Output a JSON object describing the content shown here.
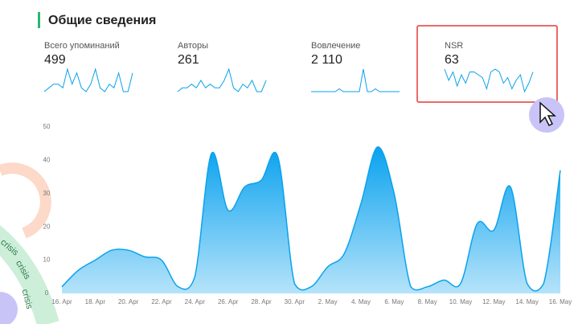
{
  "header": {
    "title": "Общие сведения"
  },
  "metrics": [
    {
      "label": "Всего упоминаний",
      "value": "499",
      "spark": [
        3,
        4,
        5,
        5,
        4,
        9,
        5,
        8,
        4,
        3,
        5,
        9,
        4,
        3,
        5,
        4,
        8,
        3,
        3,
        8
      ]
    },
    {
      "label": "Авторы",
      "value": "261",
      "spark": [
        3,
        4,
        4,
        5,
        4,
        6,
        4,
        5,
        4,
        4,
        6,
        9,
        4,
        3,
        5,
        4,
        6,
        3,
        3,
        6
      ]
    },
    {
      "label": "Вовлечение",
      "value": "2 110",
      "spark": [
        2,
        2,
        2,
        2,
        2,
        2,
        2,
        3,
        2,
        2,
        2,
        2,
        2,
        10,
        2,
        2,
        3,
        2,
        2,
        2,
        2,
        2,
        2
      ]
    },
    {
      "label": "NSR",
      "value": "63",
      "spark": [
        9,
        5,
        8,
        3,
        7,
        4,
        8,
        8,
        7,
        6,
        2,
        8,
        9,
        8,
        4,
        6,
        2,
        5,
        7,
        1,
        4,
        8
      ],
      "highlight": true
    }
  ],
  "chart_data": {
    "type": "area",
    "color": "#0aa2ee",
    "categories": [
      "16. Apr",
      null,
      "18. Apr",
      null,
      "20. Apr",
      null,
      "22. Apr",
      null,
      "24. Apr",
      null,
      "26. Apr",
      null,
      "28. Apr",
      null,
      "30. Apr",
      null,
      "2. May",
      null,
      "4. May",
      null,
      "6. May",
      null,
      "8. May",
      null,
      "10. May",
      null,
      "12. May",
      null,
      "14. May",
      null,
      "16. May"
    ],
    "values": [
      2,
      7,
      10,
      13,
      13,
      11,
      10,
      2,
      5,
      42,
      25,
      32,
      34,
      41,
      3,
      2,
      8,
      12,
      27,
      44,
      30,
      2,
      2,
      4,
      3,
      21,
      19,
      32,
      3,
      3,
      37
    ],
    "ylim": [
      0,
      50
    ],
    "yticks": [
      0,
      10,
      20,
      30,
      40,
      50
    ],
    "grid": false
  },
  "deco": {
    "text": "crisis"
  }
}
